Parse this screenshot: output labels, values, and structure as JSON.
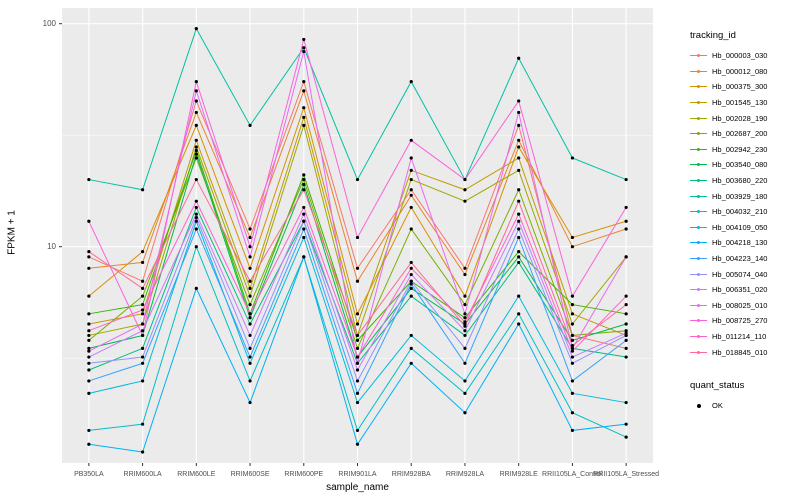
{
  "chart_data": {
    "type": "line",
    "title": "",
    "xlabel": "sample_name",
    "ylabel": "FPKM + 1",
    "y_scale": "log10",
    "ylim": [
      1.05,
      110
    ],
    "y_ticks": [
      10,
      100
    ],
    "y_tick_labels": [
      "10",
      "100"
    ],
    "grid": true,
    "legend_position": "right",
    "panel_bg": "#EBEBEB",
    "point_color": "#000000",
    "categories": [
      "PB350LA",
      "RRIM600LA",
      "RRIM600LE",
      "RRIM600SE",
      "RRIM600PE",
      "RRIM901LA",
      "RRIM928BA",
      "RRIM928LA",
      "RRIM928LE",
      "RRII105LA_Control",
      "RRII105LA_Stressed"
    ],
    "series": [
      {
        "name": "Hb_000003_030",
        "color": "#F8766D",
        "values": [
          9,
          7,
          45,
          12,
          55,
          8,
          18,
          8,
          35,
          4,
          3.5
        ]
      },
      {
        "name": "Hb_000012_080",
        "color": "#EA8331",
        "values": [
          8,
          8.5,
          40,
          11,
          50,
          7,
          17,
          7.5,
          30,
          10,
          12
        ]
      },
      {
        "name": "Hb_000375_300",
        "color": "#D89000",
        "values": [
          6,
          9.5,
          35,
          8,
          42,
          5,
          15,
          6,
          28,
          11,
          13
        ]
      },
      {
        "name": "Hb_001545_130",
        "color": "#C09B00",
        "values": [
          4.5,
          5,
          30,
          6.5,
          38,
          4.5,
          22,
          18,
          25,
          5,
          4
        ]
      },
      {
        "name": "Hb_002028_190",
        "color": "#A3A500",
        "values": [
          4,
          4.5,
          28,
          6,
          35,
          4,
          20,
          16,
          22,
          4.5,
          9
        ]
      },
      {
        "name": "Hb_002687_200",
        "color": "#7CAE00",
        "values": [
          3.8,
          6,
          25,
          5.5,
          20,
          3.5,
          12,
          5.5,
          18,
          4,
          4.2
        ]
      },
      {
        "name": "Hb_002942_230",
        "color": "#39B600",
        "values": [
          5,
          5.5,
          27,
          5,
          21,
          3.8,
          7,
          4.8,
          9.5,
          5.5,
          5
        ]
      },
      {
        "name": "Hb_003540_080",
        "color": "#00BB4E",
        "values": [
          3.5,
          4,
          26,
          4.8,
          19,
          3.2,
          6.5,
          4.5,
          9,
          3.8,
          4.5
        ]
      },
      {
        "name": "Hb_003680_220",
        "color": "#00BF7D",
        "values": [
          2.8,
          3.5,
          15,
          4.5,
          13,
          3,
          6,
          4,
          8.5,
          3.5,
          3.2
        ]
      },
      {
        "name": "Hb_003929_180",
        "color": "#00C1A3",
        "values": [
          20,
          18,
          95,
          35,
          78,
          20,
          55,
          20,
          70,
          25,
          20
        ]
      },
      {
        "name": "Hb_004032_210",
        "color": "#00BFC4",
        "values": [
          1.5,
          1.6,
          10,
          2.5,
          9,
          1.5,
          3.5,
          2.2,
          5,
          1.8,
          1.4
        ]
      },
      {
        "name": "Hb_004109_050",
        "color": "#00BAE0",
        "values": [
          2.2,
          2.5,
          13,
          3,
          11,
          2,
          4,
          2.5,
          6,
          2.2,
          2
        ]
      },
      {
        "name": "Hb_004218_130",
        "color": "#00B0F6",
        "values": [
          1.3,
          1.2,
          6.5,
          2,
          9,
          1.3,
          3,
          1.8,
          4.5,
          1.5,
          1.6
        ]
      },
      {
        "name": "Hb_004223_140",
        "color": "#35A2FF",
        "values": [
          2.5,
          3,
          12,
          3.2,
          12,
          2.2,
          6.8,
          3,
          11,
          2.5,
          3.8
        ]
      },
      {
        "name": "Hb_005074_040",
        "color": "#9590FF",
        "values": [
          3,
          3.2,
          13.5,
          3.5,
          13,
          2.5,
          7,
          3.5,
          12,
          3,
          4
        ]
      },
      {
        "name": "Hb_006351_020",
        "color": "#C77CFF",
        "values": [
          3.2,
          4.2,
          14,
          4,
          14,
          2.8,
          7.5,
          4.2,
          13,
          3.2,
          4.1
        ]
      },
      {
        "name": "Hb_008025_010",
        "color": "#E76BF3",
        "values": [
          3.4,
          4.5,
          50,
          9,
          75,
          3,
          25,
          5,
          40,
          3.5,
          9
        ]
      },
      {
        "name": "Hb_008725_270",
        "color": "#FA62DB",
        "values": [
          13,
          4,
          55,
          10,
          85,
          11,
          30,
          20,
          45,
          6,
          15
        ]
      },
      {
        "name": "Hb_011214_110",
        "color": "#FF61CC",
        "values": [
          4.2,
          5.2,
          16,
          5,
          15,
          3.2,
          8,
          4.6,
          14,
          3.4,
          6
        ]
      },
      {
        "name": "Hb_018845_010",
        "color": "#FF6A98",
        "values": [
          9.5,
          6.5,
          20,
          7,
          18,
          4,
          8.5,
          4.4,
          16,
          3.6,
          5.5
        ]
      }
    ],
    "legend": {
      "color_title": "tracking_id",
      "shape_title": "quant_status",
      "shape_items": [
        {
          "label": "OK",
          "color": "#000000"
        }
      ]
    }
  }
}
